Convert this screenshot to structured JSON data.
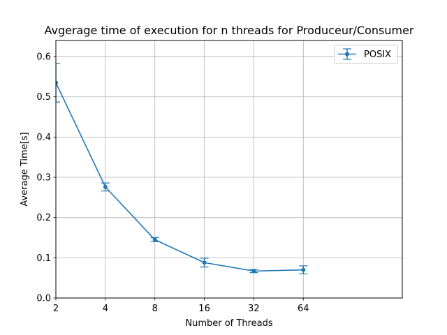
{
  "chart_data": {
    "type": "line",
    "title": "Avgerage time of execution for n threads for Produceur/Consumer",
    "xlabel": "Number of Threads",
    "ylabel": "Average Time[s]",
    "xscale": "log2",
    "x": [
      2,
      4,
      8,
      16,
      32,
      64
    ],
    "x_tick_labels": [
      "2",
      "4",
      "8",
      "16",
      "32",
      "64"
    ],
    "xlim": [
      2,
      256
    ],
    "ylim": [
      0,
      0.64
    ],
    "y_ticks": [
      0.0,
      0.1,
      0.2,
      0.3,
      0.4,
      0.5,
      0.6
    ],
    "y_tick_labels": [
      "0.0",
      "0.1",
      "0.2",
      "0.3",
      "0.4",
      "0.5",
      "0.6"
    ],
    "grid": true,
    "legend_position": "top-right",
    "series": [
      {
        "name": "POSIX",
        "color": "#1f77b4",
        "marker": "circle",
        "y": [
          0.535,
          0.276,
          0.145,
          0.088,
          0.067,
          0.07
        ],
        "yerr": [
          0.048,
          0.01,
          0.005,
          0.011,
          0.004,
          0.01
        ]
      }
    ]
  }
}
